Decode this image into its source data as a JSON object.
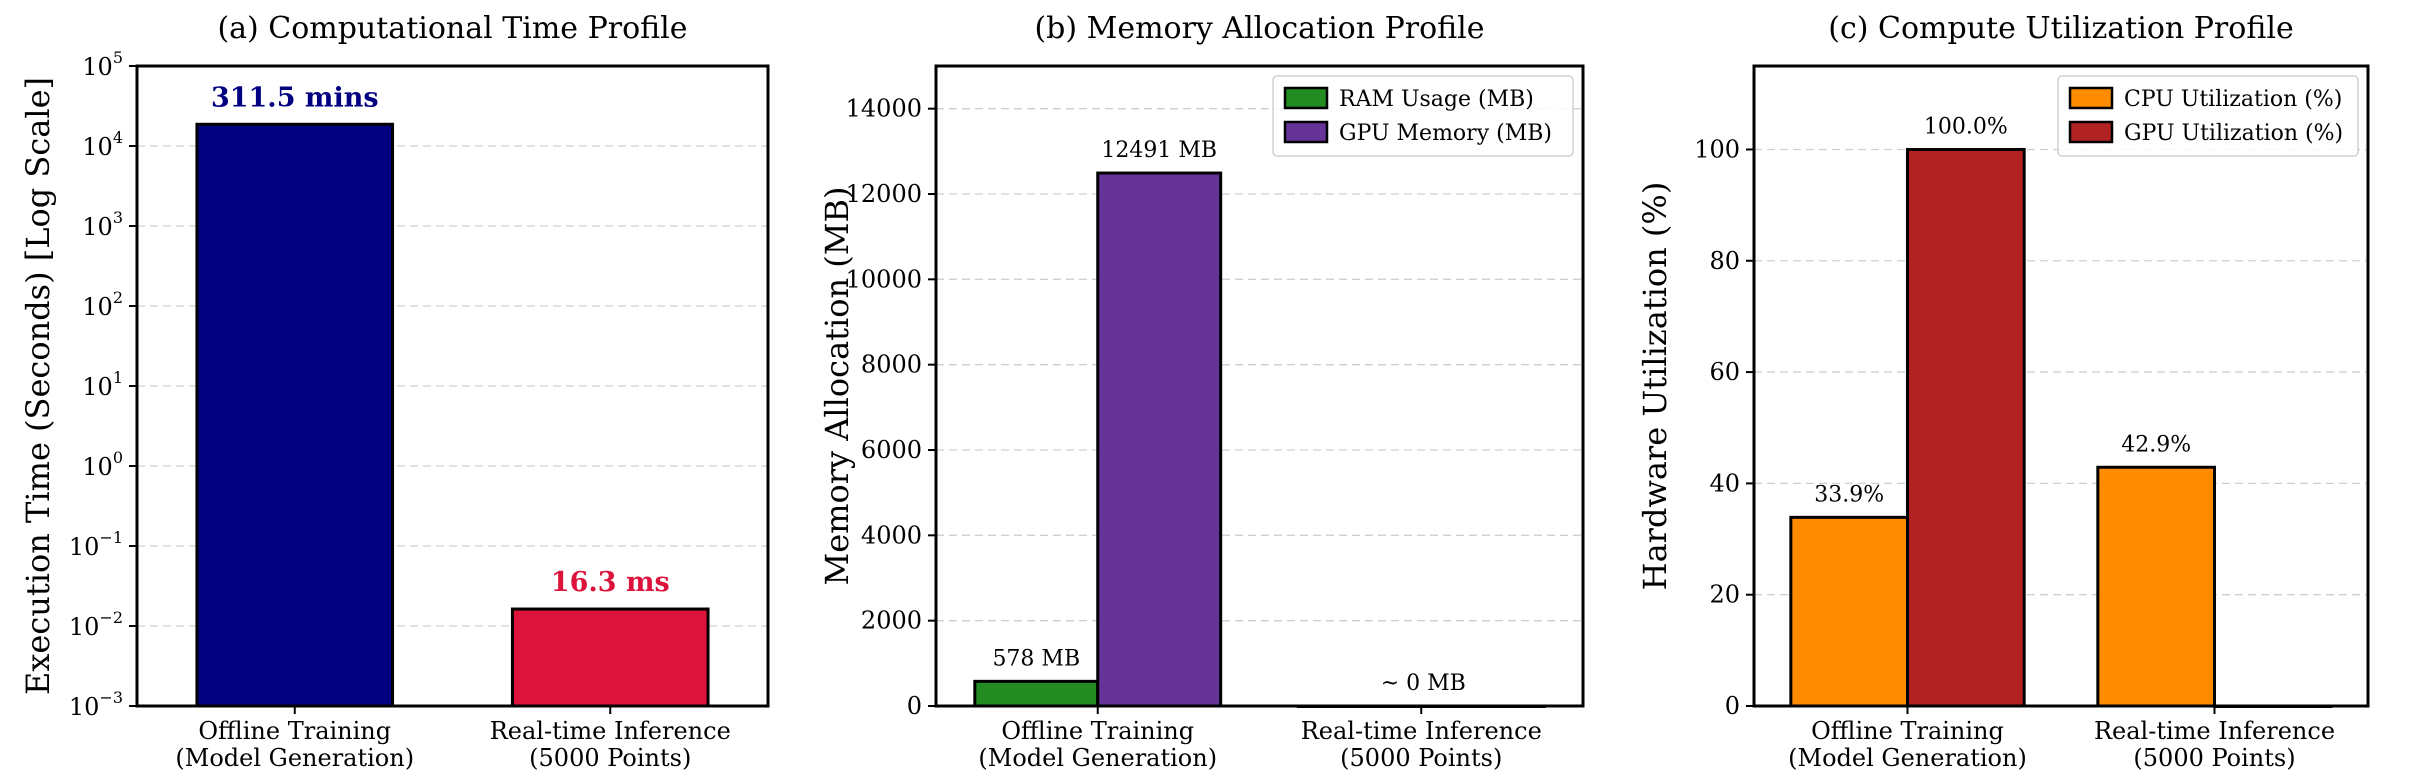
{
  "chart_data": [
    {
      "type": "bar",
      "title": "(a) Computational Time Profile",
      "ylabel": "Execution Time (Seconds) [Log Scale]",
      "yscale": "log",
      "ylim": [
        0.001,
        100000
      ],
      "yticks": [
        {
          "base": "10",
          "exp": "−3"
        },
        {
          "base": "10",
          "exp": "−2"
        },
        {
          "base": "10",
          "exp": "−1"
        },
        {
          "base": "10",
          "exp": "0"
        },
        {
          "base": "10",
          "exp": "1"
        },
        {
          "base": "10",
          "exp": "2"
        },
        {
          "base": "10",
          "exp": "3"
        },
        {
          "base": "10",
          "exp": "4"
        },
        {
          "base": "10",
          "exp": "5"
        }
      ],
      "grid": true,
      "categories": [
        {
          "line1": "Offline Training",
          "line2": "(Model Generation)"
        },
        {
          "line1": "Real-time Inference",
          "line2": "(5000 Points)"
        }
      ],
      "values": [
        18690,
        0.0163
      ],
      "colors": [
        "#000080",
        "#dc143c"
      ],
      "labels": [
        "311.5 mins",
        "16.3 ms"
      ]
    },
    {
      "type": "bar",
      "title": "(b) Memory Allocation Profile",
      "ylabel": "Memory Allocation (MB)",
      "ylim": [
        0,
        15000
      ],
      "yticks": [
        "0",
        "2000",
        "4000",
        "6000",
        "8000",
        "10000",
        "12000",
        "14000"
      ],
      "grid": true,
      "legend_position": "top-right",
      "categories": [
        {
          "line1": "Offline Training",
          "line2": "(Model Generation)"
        },
        {
          "line1": "Real-time Inference",
          "line2": "(5000 Points)"
        }
      ],
      "series": [
        {
          "name": "RAM Usage (MB)",
          "color": "#228b22",
          "values": [
            578,
            0
          ],
          "labels": [
            "578 MB",
            ""
          ]
        },
        {
          "name": "GPU Memory (MB)",
          "color": "#663399",
          "values": [
            12491,
            0
          ],
          "labels": [
            "12491 MB",
            ""
          ]
        }
      ],
      "annotation": "~ 0 MB"
    },
    {
      "type": "bar",
      "title": "(c) Compute Utilization Profile",
      "ylabel": "Hardware Utilization (%)",
      "ylim": [
        0,
        115
      ],
      "yticks": [
        "0",
        "20",
        "40",
        "60",
        "80",
        "100"
      ],
      "grid": true,
      "legend_position": "top-right",
      "categories": [
        {
          "line1": "Offline Training",
          "line2": "(Model Generation)"
        },
        {
          "line1": "Real-time Inference",
          "line2": "(5000 Points)"
        }
      ],
      "series": [
        {
          "name": "CPU Utilization (%)",
          "color": "#ff8c00",
          "values": [
            33.9,
            42.9
          ],
          "labels": [
            "33.9%",
            "42.9%"
          ]
        },
        {
          "name": "GPU Utilization (%)",
          "color": "#b22222",
          "values": [
            100.0,
            0
          ],
          "labels": [
            "100.0%",
            ""
          ]
        }
      ]
    }
  ]
}
